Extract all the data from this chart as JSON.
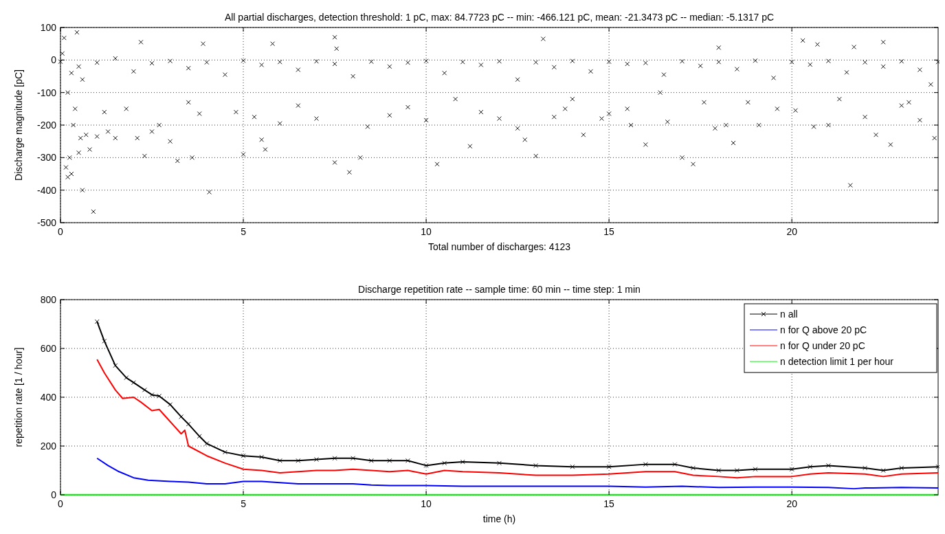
{
  "chart_data": [
    {
      "type": "scatter",
      "title": "All partial discharges, detection threshold: 1 pC, max: 84.7723 pC -- min: -466.121 pC, mean: -21.3473 pC -- median: -5.1317 pC",
      "xlabel": "Total number of discharges: 4123",
      "ylabel": "Discharge magnitude [pC]",
      "xlim": [
        0,
        24
      ],
      "xticks": [
        0,
        5,
        10,
        15,
        20
      ],
      "ylim": [
        -500,
        100
      ],
      "yticks": [
        -500,
        -400,
        -300,
        -200,
        -100,
        0,
        100
      ],
      "grid": true,
      "marker": "cross",
      "series": [
        {
          "color": "#000000",
          "x": [
            0.1,
            0.45,
            0.05,
            0.15,
            0.2,
            0.3,
            0.25,
            0.5,
            0.35,
            0.6,
            0.9,
            0.55,
            0.7,
            0.8,
            1.0,
            1.3,
            1.5,
            1.2,
            0.4,
            0.2,
            0.6,
            0.3,
            1.8,
            2.2,
            2.1,
            2.3,
            2.5,
            2.7,
            3.0,
            3.2,
            3.6,
            3.5,
            3.8,
            3.9,
            4.07,
            4.8,
            5.0,
            5.3,
            5.5,
            5.6,
            5.8,
            6.0,
            6.5,
            7.0,
            7.5,
            7.55,
            7.5,
            7.9,
            8.2,
            8.4,
            9.0,
            9.5,
            10.0,
            10.3,
            10.8,
            11.2,
            11.5,
            12.0,
            12.5,
            12.7,
            13.0,
            13.2,
            13.5,
            13.8,
            14.0,
            14.3,
            14.8,
            15.0,
            15.5,
            15.6,
            16.0,
            16.4,
            16.6,
            17.0,
            17.3,
            17.6,
            17.9,
            18.0,
            18.2,
            18.4,
            18.8,
            19.1,
            19.6,
            20.1,
            20.3,
            20.6,
            20.7,
            21.0,
            21.3,
            21.6,
            21.7,
            22.0,
            22.3,
            22.5,
            22.7,
            23.0,
            23.2,
            23.5,
            23.9,
            23.8,
            0.0,
            0.5,
            1.0,
            1.5,
            2.0,
            2.5,
            3.0,
            3.5,
            4.0,
            4.5,
            5.0,
            5.5,
            6.0,
            6.5,
            7.0,
            7.5,
            8.0,
            8.5,
            9.0,
            9.5,
            10.0,
            10.5,
            11.0,
            11.5,
            12.0,
            12.5,
            13.0,
            13.5,
            14.0,
            14.5,
            15.0,
            15.5,
            16.0,
            16.5,
            17.0,
            17.5,
            18.0,
            18.5,
            19.0,
            19.5,
            20.0,
            20.5,
            21.0,
            21.5,
            22.0,
            22.5,
            23.0,
            23.5,
            24.0
          ],
          "values": [
            68,
            85,
            20,
            -330,
            -360,
            -350,
            -300,
            -285,
            -200,
            -400,
            -466,
            -240,
            -230,
            -275,
            -235,
            -220,
            -240,
            -160,
            -150,
            -100,
            -60,
            -40,
            -150,
            55,
            -240,
            -295,
            -220,
            -200,
            -250,
            -310,
            -300,
            -130,
            -165,
            50,
            -406,
            -160,
            -290,
            -175,
            -245,
            -275,
            50,
            -195,
            -140,
            -180,
            70,
            35,
            -315,
            -345,
            -300,
            -205,
            -170,
            -145,
            -185,
            -320,
            -120,
            -265,
            -160,
            -180,
            -210,
            -245,
            -295,
            65,
            -175,
            -150,
            -120,
            -230,
            -180,
            -165,
            -150,
            -200,
            -260,
            -100,
            -190,
            -300,
            -320,
            -130,
            -210,
            38,
            -200,
            -255,
            -130,
            -200,
            -150,
            -155,
            60,
            -205,
            48,
            -200,
            -120,
            -385,
            40,
            -175,
            -230,
            55,
            -260,
            -140,
            -130,
            -185,
            -240,
            -75,
            -5,
            -20,
            -8,
            5,
            -35,
            -10,
            -3,
            -25,
            -7,
            -45,
            -2,
            -15,
            -6,
            -30,
            -4,
            -12,
            -50,
            -5,
            -20,
            -8,
            -3,
            -40,
            -6,
            -15,
            -4,
            -60,
            -7,
            -22,
            -3,
            -35,
            -5,
            -12,
            -9,
            -45,
            -4,
            -18,
            -6,
            -28,
            -2,
            -55,
            -6,
            -14,
            -3,
            -38,
            -7,
            -20,
            -4,
            -30,
            -6
          ]
        }
      ]
    },
    {
      "type": "line",
      "title": "Discharge repetition rate -- sample time: 60 min -- time step: 1 min",
      "xlabel": "time (h)",
      "ylabel": "repetition rate [1 / hour]",
      "xlim": [
        0,
        24
      ],
      "xticks": [
        0,
        5,
        10,
        15,
        20
      ],
      "ylim": [
        0,
        800
      ],
      "yticks": [
        0,
        200,
        400,
        600,
        800
      ],
      "grid": true,
      "legend": "top right",
      "series": [
        {
          "name": "n all",
          "color": "#000000",
          "marker": "cross",
          "x": [
            1.0,
            1.2,
            1.5,
            1.8,
            2.0,
            2.3,
            2.5,
            2.7,
            3.0,
            3.3,
            3.5,
            3.8,
            4.0,
            4.5,
            5.0,
            5.5,
            6.0,
            6.5,
            7.0,
            7.5,
            8.0,
            8.5,
            9.0,
            9.5,
            10.0,
            10.5,
            11.0,
            12.0,
            13.0,
            14.0,
            15.0,
            16.0,
            16.8,
            17.3,
            18.0,
            18.5,
            19.0,
            20.0,
            20.5,
            21.0,
            22.0,
            22.5,
            23.0,
            24.0
          ],
          "values": [
            710,
            630,
            530,
            480,
            460,
            430,
            410,
            405,
            370,
            320,
            290,
            240,
            210,
            175,
            160,
            155,
            140,
            140,
            145,
            150,
            150,
            140,
            140,
            140,
            120,
            130,
            135,
            130,
            120,
            115,
            115,
            125,
            125,
            110,
            100,
            100,
            105,
            105,
            115,
            120,
            110,
            100,
            110,
            115
          ]
        },
        {
          "name": "n for Q above 20 pC",
          "color": "#0000ff",
          "x": [
            1.0,
            1.3,
            1.6,
            2.0,
            2.4,
            3.0,
            3.5,
            4.0,
            4.5,
            5.0,
            5.5,
            6.0,
            6.5,
            7.0,
            8.0,
            8.5,
            9.0,
            10.0,
            11.0,
            12.0,
            13.0,
            14.0,
            15.0,
            16.0,
            17.0,
            18.0,
            19.0,
            20.0,
            21.0,
            21.7,
            22.0,
            23.0,
            24.0
          ],
          "values": [
            150,
            120,
            95,
            70,
            60,
            55,
            52,
            45,
            45,
            55,
            55,
            50,
            45,
            45,
            45,
            40,
            38,
            38,
            35,
            35,
            35,
            35,
            35,
            32,
            35,
            30,
            32,
            32,
            30,
            25,
            28,
            30,
            28
          ]
        },
        {
          "name": "n for Q under 20 pC",
          "color": "#ff0000",
          "x": [
            1.0,
            1.2,
            1.5,
            1.7,
            2.0,
            2.2,
            2.5,
            2.7,
            3.0,
            3.3,
            3.4,
            3.5,
            4.0,
            4.5,
            5.0,
            5.5,
            6.0,
            6.5,
            7.0,
            7.5,
            8.0,
            8.5,
            9.0,
            9.5,
            10.0,
            10.5,
            11.0,
            12.0,
            13.0,
            14.0,
            15.0,
            16.0,
            16.8,
            17.3,
            18.0,
            18.5,
            19.0,
            20.0,
            20.5,
            21.0,
            22.0,
            22.5,
            23.0,
            24.0
          ],
          "values": [
            555,
            500,
            430,
            395,
            400,
            380,
            345,
            350,
            300,
            250,
            265,
            200,
            160,
            130,
            105,
            100,
            90,
            95,
            100,
            100,
            105,
            100,
            95,
            100,
            85,
            100,
            95,
            90,
            80,
            80,
            85,
            95,
            95,
            80,
            75,
            70,
            75,
            75,
            85,
            90,
            85,
            75,
            85,
            90
          ]
        },
        {
          "name": "n detection limit 1 per hour",
          "color": "#00ff00",
          "x": [
            0,
            24
          ],
          "values": [
            1,
            1
          ]
        }
      ]
    }
  ]
}
